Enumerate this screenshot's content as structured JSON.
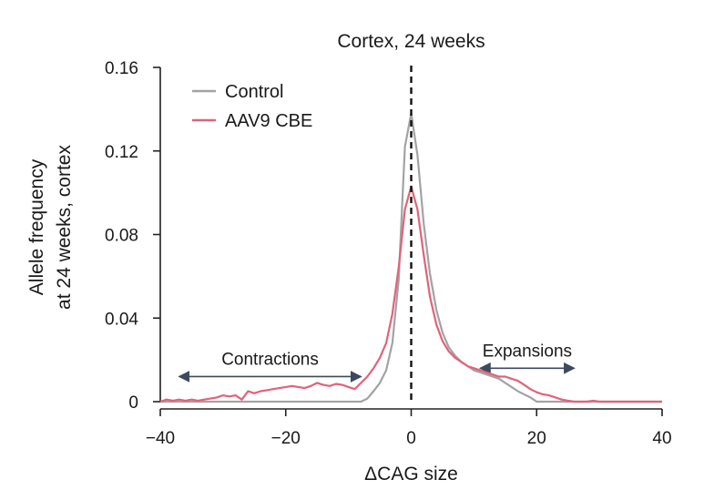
{
  "chart_data": {
    "type": "line",
    "title": "Cortex, 24 weeks",
    "xlabel": "ΔCAG size",
    "ylabel_lines": [
      "Allele frequency",
      "at 24 weeks, cortex"
    ],
    "xlim": [
      -40,
      40
    ],
    "ylim": [
      0,
      0.16
    ],
    "xticks": [
      -40,
      -20,
      0,
      20,
      40
    ],
    "xtick_labels": [
      "−40",
      "−20",
      "0",
      "20",
      "40"
    ],
    "yticks": [
      0,
      0.04,
      0.08,
      0.12,
      0.16
    ],
    "ytick_labels": [
      "0",
      "0.04",
      "0.08",
      "0.12",
      "0.16"
    ],
    "reference_line": {
      "x": 0,
      "style": "dashed",
      "color": "#111111"
    },
    "legend": {
      "position": "top-left",
      "entries": [
        "Control",
        "AAV9 CBE"
      ]
    },
    "series": [
      {
        "name": "Control",
        "color": "#a3a3a3",
        "x": [
          -40,
          -30,
          -20,
          -10,
          -8,
          -7,
          -6,
          -5,
          -4,
          -3,
          -2,
          -1,
          0,
          1,
          2,
          3,
          4,
          5,
          6,
          7,
          8,
          9,
          10,
          12,
          14,
          15,
          16,
          17,
          18,
          19,
          20,
          25,
          30,
          35,
          40
        ],
        "y": [
          0,
          0,
          0,
          0,
          0,
          0.0015,
          0.005,
          0.009,
          0.015,
          0.028,
          0.058,
          0.122,
          0.138,
          0.118,
          0.085,
          0.061,
          0.044,
          0.033,
          0.026,
          0.022,
          0.019,
          0.017,
          0.015,
          0.013,
          0.011,
          0.009,
          0.007,
          0.005,
          0.0035,
          0.002,
          0,
          0,
          0,
          0,
          0
        ]
      },
      {
        "name": "AAV9 CBE",
        "color": "#e06379",
        "x": [
          -40,
          -39,
          -38,
          -37,
          -36,
          -35,
          -34,
          -33,
          -32,
          -31,
          -30,
          -29,
          -28,
          -27,
          -26,
          -25,
          -24,
          -23,
          -22,
          -21,
          -20,
          -19,
          -18,
          -17,
          -16,
          -15,
          -14,
          -13,
          -12,
          -11,
          -10,
          -9,
          -8,
          -7,
          -6,
          -5,
          -4,
          -3,
          -2,
          -1,
          0,
          1,
          2,
          3,
          4,
          5,
          6,
          7,
          8,
          9,
          10,
          11,
          12,
          13,
          14,
          15,
          16,
          17,
          18,
          19,
          20,
          21,
          22,
          23,
          24,
          25,
          26,
          27,
          28,
          29,
          30,
          31,
          32,
          33,
          34,
          35,
          36,
          37,
          38,
          39,
          40
        ],
        "y": [
          0,
          0.001,
          0.0005,
          0.001,
          0.0005,
          0.001,
          0.0005,
          0.001,
          0.0015,
          0.002,
          0.003,
          0.0025,
          0.003,
          0.001,
          0.005,
          0.004,
          0.005,
          0.0055,
          0.006,
          0.0065,
          0.007,
          0.0075,
          0.007,
          0.0065,
          0.0075,
          0.009,
          0.008,
          0.0075,
          0.0085,
          0.008,
          0.007,
          0.006,
          0.009,
          0.012,
          0.016,
          0.021,
          0.028,
          0.042,
          0.064,
          0.092,
          0.103,
          0.092,
          0.07,
          0.05,
          0.037,
          0.029,
          0.024,
          0.021,
          0.019,
          0.017,
          0.016,
          0.015,
          0.014,
          0.013,
          0.012,
          0.012,
          0.011,
          0.01,
          0.008,
          0.006,
          0.0045,
          0.0035,
          0.003,
          0.002,
          0.001,
          0.0005,
          0,
          0,
          0,
          0.0005,
          0,
          0,
          0,
          0,
          0,
          0,
          0,
          0,
          0,
          0,
          0
        ]
      }
    ],
    "annotations": [
      {
        "label": "Contractions",
        "x_range": [
          -37,
          -8
        ],
        "y": 0.012
      },
      {
        "label": "Expansions",
        "x_range": [
          11,
          26
        ],
        "y": 0.016
      }
    ]
  }
}
